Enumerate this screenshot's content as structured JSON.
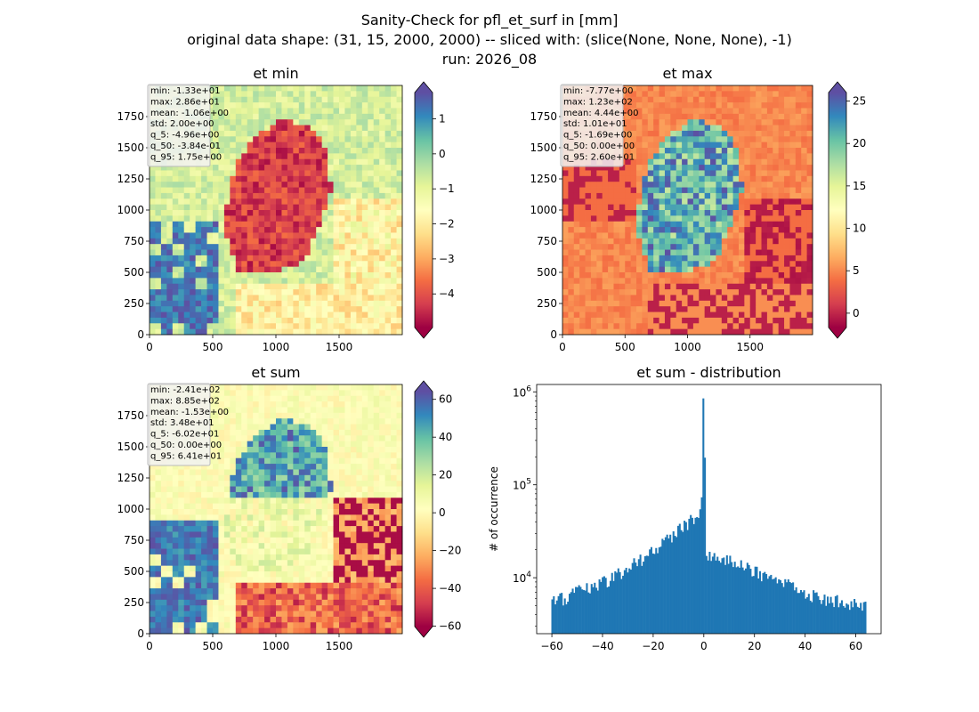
{
  "figure": {
    "suptitle": [
      "Sanity-Check for pfl_et_surf in [mm]",
      "original data shape: (31, 15, 2000, 2000) -- sliced with: (slice(None, None, None), -1)",
      "run: 2026_08"
    ]
  },
  "chart_data": [
    {
      "type": "heatmap",
      "title": "et min",
      "colormap": "Spectral",
      "colorbar": {
        "ticks": [
          1,
          0,
          -1,
          -2,
          -3,
          -4
        ],
        "vmin": -4.96,
        "vmax": 1.75,
        "extend": "both"
      },
      "x_ticks": [
        0,
        500,
        1000,
        1500
      ],
      "y_ticks": [
        0,
        250,
        500,
        750,
        1000,
        1250,
        1500,
        1750
      ],
      "xlim": [
        0,
        2000
      ],
      "ylim": [
        0,
        2000
      ],
      "stats": [
        "min: -1.33e+01",
        "max: 2.86e+01",
        "mean: -1.06e+00",
        "std: 2.00e+00",
        "q_5: -4.96e+00",
        "q_50: -3.84e-01",
        "q_95: 1.75e+00"
      ]
    },
    {
      "type": "heatmap",
      "title": "et max",
      "colormap": "Spectral",
      "colorbar": {
        "ticks": [
          25,
          20,
          15,
          10,
          5,
          0
        ],
        "vmin": -1.69,
        "vmax": 26.0,
        "extend": "both"
      },
      "x_ticks": [
        0,
        500,
        1000,
        1500
      ],
      "y_ticks": [
        0,
        250,
        500,
        750,
        1000,
        1250,
        1500,
        1750
      ],
      "xlim": [
        0,
        2000
      ],
      "ylim": [
        0,
        2000
      ],
      "stats": [
        "min: -7.77e+00",
        "max: 1.23e+02",
        "mean: 4.44e+00",
        "std: 1.01e+01",
        "q_5: -1.69e+00",
        "q_50: 0.00e+00",
        "q_95: 2.60e+01"
      ]
    },
    {
      "type": "heatmap",
      "title": "et sum",
      "colormap": "Spectral",
      "colorbar": {
        "ticks": [
          60,
          40,
          20,
          0,
          -20,
          -40,
          -60
        ],
        "vmin": -60.2,
        "vmax": 64.1,
        "extend": "both"
      },
      "x_ticks": [
        0,
        500,
        1000,
        1500
      ],
      "y_ticks": [
        0,
        250,
        500,
        750,
        1000,
        1250,
        1500,
        1750
      ],
      "xlim": [
        0,
        2000
      ],
      "ylim": [
        0,
        2000
      ],
      "stats": [
        "min: -2.41e+02",
        "max: 8.85e+02",
        "mean: -1.53e+00",
        "std: 3.48e+01",
        "q_5: -6.02e+01",
        "q_50: 0.00e+00",
        "q_95: 6.41e+01"
      ]
    },
    {
      "type": "bar",
      "title": "et sum - distribution",
      "ylabel": "# of occurrence",
      "yscale": "log",
      "xlim": [
        -66,
        70
      ],
      "ylim": [
        2500,
        1200000
      ],
      "x_ticks": [
        -60,
        -40,
        -20,
        0,
        20,
        40,
        60
      ],
      "x_tick_labels": [
        "−60",
        "−40",
        "−20",
        "0",
        "20",
        "40",
        "60"
      ],
      "y_ticks": [
        {
          "value": 10000,
          "base": "10",
          "exp": "4"
        },
        {
          "value": 100000,
          "base": "10",
          "exp": "5"
        },
        {
          "value": 1000000,
          "base": "10",
          "exp": "6"
        }
      ],
      "bar_color": "#1f77b4",
      "bins": {
        "start": -60.2,
        "end": 64.1
      },
      "profile": [
        {
          "x": -60,
          "y": 5300
        },
        {
          "x": -55,
          "y": 6100
        },
        {
          "x": -50,
          "y": 7000
        },
        {
          "x": -45,
          "y": 7700
        },
        {
          "x": -40,
          "y": 9000
        },
        {
          "x": -35,
          "y": 10500
        },
        {
          "x": -30,
          "y": 12500
        },
        {
          "x": -25,
          "y": 15500
        },
        {
          "x": -20,
          "y": 19000
        },
        {
          "x": -15,
          "y": 25000
        },
        {
          "x": -10,
          "y": 32000
        },
        {
          "x": -5,
          "y": 42000
        },
        {
          "x": -2,
          "y": 50000
        },
        {
          "x": -1,
          "y": 55000
        },
        {
          "x": 0,
          "y": 850000
        },
        {
          "x": 1,
          "y": 19000
        },
        {
          "x": 2,
          "y": 18000
        },
        {
          "x": 5,
          "y": 17500
        },
        {
          "x": 10,
          "y": 15500
        },
        {
          "x": 15,
          "y": 13500
        },
        {
          "x": 20,
          "y": 11500
        },
        {
          "x": 25,
          "y": 10000
        },
        {
          "x": 30,
          "y": 8800
        },
        {
          "x": 35,
          "y": 8000
        },
        {
          "x": 40,
          "y": 7000
        },
        {
          "x": 45,
          "y": 6300
        },
        {
          "x": 50,
          "y": 5800
        },
        {
          "x": 55,
          "y": 5400
        },
        {
          "x": 60,
          "y": 5000
        },
        {
          "x": 64,
          "y": 4800
        }
      ]
    }
  ]
}
